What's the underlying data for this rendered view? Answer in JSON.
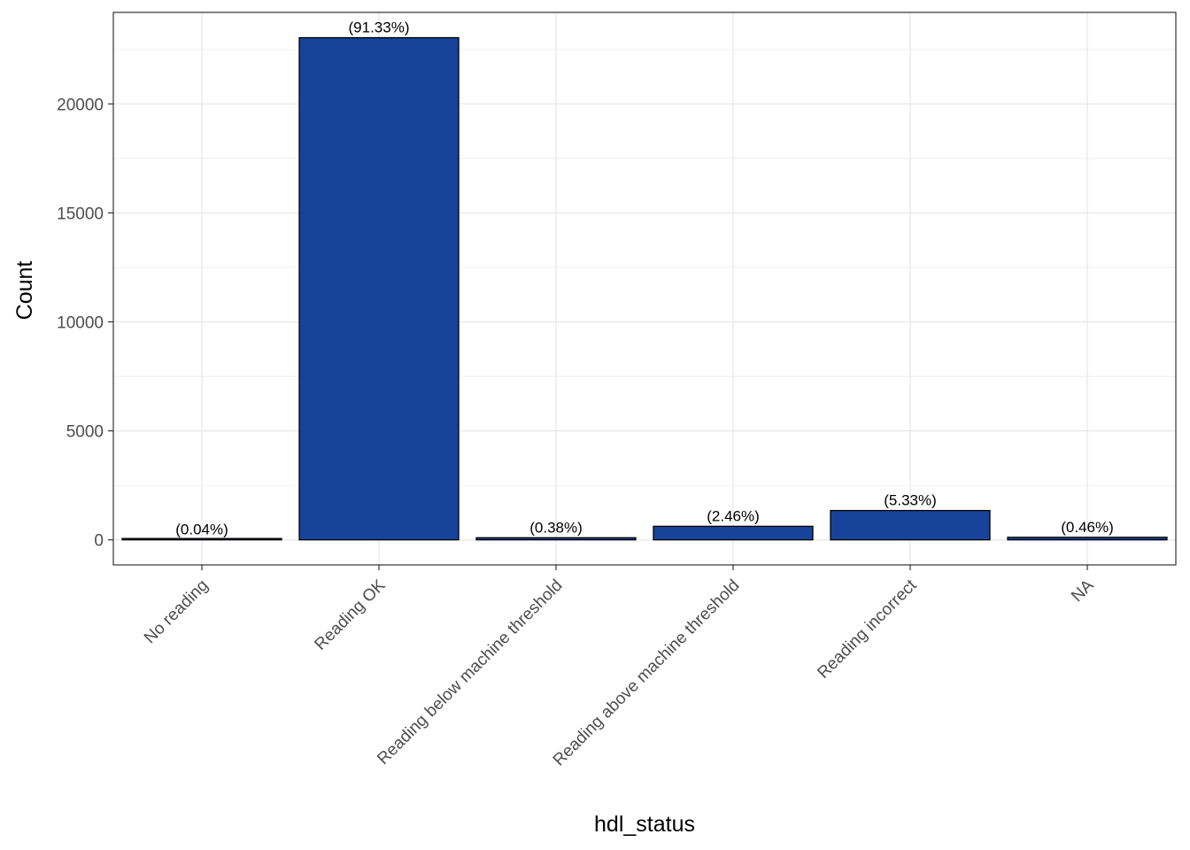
{
  "chart_data": {
    "type": "bar",
    "xlabel": "hdl_status",
    "ylabel": "Count",
    "categories": [
      "No reading",
      "Reading OK",
      "Reading below machine threshold",
      "Reading above machine threshold",
      "Reading incorrect",
      "NA"
    ],
    "values": [
      10,
      23040,
      96,
      621,
      1345,
      116
    ],
    "labels": [
      "(0.04%)",
      "(91.33%)",
      "(0.38%)",
      "(2.46%)",
      "(5.33%)",
      "(0.46%)"
    ],
    "yticks": [
      0,
      5000,
      10000,
      15000,
      20000
    ],
    "ylim": [
      -1150,
      24200
    ],
    "grid": true,
    "colors": {
      "bar_fill": "#17449A",
      "bar_stroke": "#000000",
      "grid": "#EBEBEB",
      "panel_border": "#333333"
    }
  }
}
